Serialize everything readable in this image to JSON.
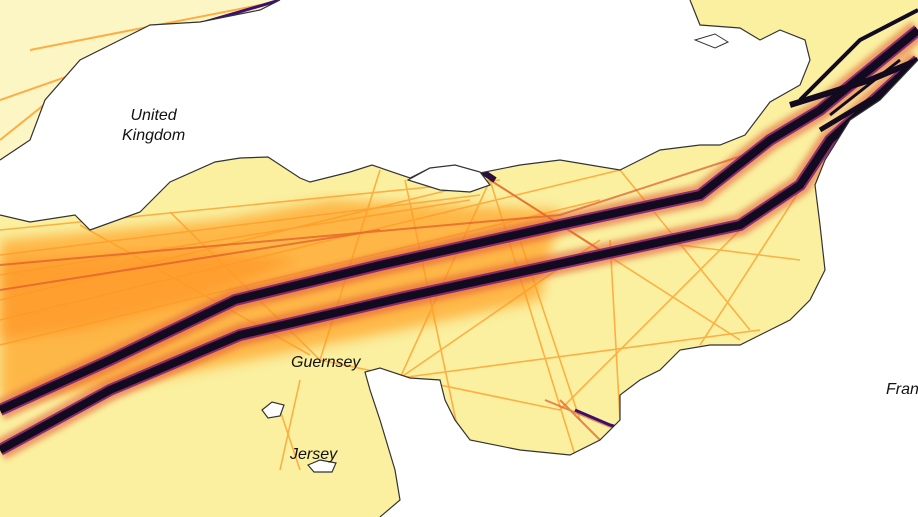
{
  "map": {
    "labels": {
      "united_kingdom": "United\nKingdom",
      "guernsey": "Guernsey",
      "jersey": "Jersey",
      "france_partial": "Fran"
    },
    "colors": {
      "background": "#ffffff",
      "sea": "#faf0a0",
      "sea_light": "#fcf6c4",
      "lane_low": "#ffb530",
      "lane_mid": "#f57d15",
      "lane_high": "#c73f4c",
      "lane_max": "#3b0f70",
      "lane_core": "#120a1f",
      "coastline": "#333333"
    }
  }
}
